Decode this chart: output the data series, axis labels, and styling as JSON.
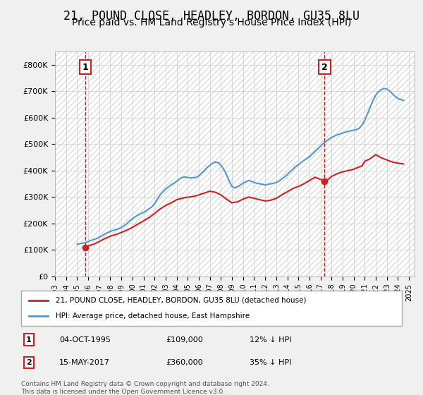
{
  "title": "21, POUND CLOSE, HEADLEY, BORDON, GU35 8LU",
  "subtitle": "Price paid vs. HM Land Registry's House Price Index (HPI)",
  "title_fontsize": 12,
  "subtitle_fontsize": 10,
  "ylabel_ticks": [
    "£0",
    "£100K",
    "£200K",
    "£300K",
    "£400K",
    "£500K",
    "£600K",
    "£700K",
    "£800K"
  ],
  "ytick_values": [
    0,
    100000,
    200000,
    300000,
    400000,
    500000,
    600000,
    700000,
    800000
  ],
  "ylim": [
    0,
    850000
  ],
  "xlim_start": 1993.0,
  "xlim_end": 2025.5,
  "background_color": "#f0f0f0",
  "plot_bg_color": "#ffffff",
  "grid_color": "#cccccc",
  "hpi_color": "#5599cc",
  "price_color": "#cc2222",
  "marker1_x": 1995.75,
  "marker1_y": 109000,
  "marker2_x": 2017.37,
  "marker2_y": 360000,
  "vline_color": "#cc2222",
  "annotation1_label": "1",
  "annotation2_label": "2",
  "legend_label1": "21, POUND CLOSE, HEADLEY, BORDON, GU35 8LU (detached house)",
  "legend_label2": "HPI: Average price, detached house, East Hampshire",
  "table_row1": [
    "1",
    "04-OCT-1995",
    "£109,000",
    "12% ↓ HPI"
  ],
  "table_row2": [
    "2",
    "15-MAY-2017",
    "£360,000",
    "35% ↓ HPI"
  ],
  "footnote": "Contains HM Land Registry data © Crown copyright and database right 2024.\nThis data is licensed under the Open Government Licence v3.0.",
  "hpi_data_x": [
    1995,
    1995.25,
    1995.5,
    1995.75,
    1996,
    1996.25,
    1996.5,
    1996.75,
    1997,
    1997.25,
    1997.5,
    1997.75,
    1998,
    1998.25,
    1998.5,
    1998.75,
    1999,
    1999.25,
    1999.5,
    1999.75,
    2000,
    2000.25,
    2000.5,
    2000.75,
    2001,
    2001.25,
    2001.5,
    2001.75,
    2002,
    2002.25,
    2002.5,
    2002.75,
    2003,
    2003.25,
    2003.5,
    2003.75,
    2004,
    2004.25,
    2004.5,
    2004.75,
    2005,
    2005.25,
    2005.5,
    2005.75,
    2006,
    2006.25,
    2006.5,
    2006.75,
    2007,
    2007.25,
    2007.5,
    2007.75,
    2008,
    2008.25,
    2008.5,
    2008.75,
    2009,
    2009.25,
    2009.5,
    2009.75,
    2010,
    2010.25,
    2010.5,
    2010.75,
    2011,
    2011.25,
    2011.5,
    2011.75,
    2012,
    2012.25,
    2012.5,
    2012.75,
    2013,
    2013.25,
    2013.5,
    2013.75,
    2014,
    2014.25,
    2014.5,
    2014.75,
    2015,
    2015.25,
    2015.5,
    2015.75,
    2016,
    2016.25,
    2016.5,
    2016.75,
    2017,
    2017.25,
    2017.5,
    2017.75,
    2018,
    2018.25,
    2018.5,
    2018.75,
    2019,
    2019.25,
    2019.5,
    2019.75,
    2020,
    2020.25,
    2020.5,
    2020.75,
    2021,
    2021.25,
    2021.5,
    2021.75,
    2022,
    2022.25,
    2022.5,
    2022.75,
    2023,
    2023.25,
    2023.5,
    2023.75,
    2024,
    2024.25,
    2024.5
  ],
  "hpi_data_y": [
    122000,
    124000,
    126000,
    128000,
    132000,
    136000,
    140000,
    143000,
    148000,
    154000,
    160000,
    166000,
    170000,
    174000,
    177000,
    180000,
    185000,
    192000,
    200000,
    210000,
    218000,
    226000,
    232000,
    237000,
    242000,
    248000,
    256000,
    263000,
    275000,
    292000,
    308000,
    320000,
    330000,
    338000,
    346000,
    352000,
    360000,
    368000,
    374000,
    376000,
    374000,
    372000,
    373000,
    374000,
    380000,
    390000,
    400000,
    412000,
    420000,
    428000,
    432000,
    430000,
    420000,
    405000,
    385000,
    360000,
    340000,
    335000,
    338000,
    345000,
    352000,
    358000,
    362000,
    360000,
    355000,
    352000,
    350000,
    348000,
    346000,
    348000,
    350000,
    352000,
    355000,
    360000,
    368000,
    376000,
    385000,
    395000,
    405000,
    415000,
    422000,
    430000,
    438000,
    445000,
    452000,
    462000,
    472000,
    482000,
    492000,
    502000,
    510000,
    518000,
    525000,
    530000,
    535000,
    538000,
    542000,
    545000,
    548000,
    550000,
    552000,
    555000,
    560000,
    572000,
    590000,
    615000,
    640000,
    665000,
    685000,
    698000,
    705000,
    710000,
    708000,
    700000,
    690000,
    680000,
    672000,
    668000,
    665000
  ],
  "price_data_x": [
    1995.75,
    1996,
    1996.5,
    1997,
    1997.5,
    1998,
    1998.75,
    1999.5,
    2000,
    2000.5,
    2001,
    2001.5,
    2002,
    2002.5,
    2003,
    2003.5,
    2004,
    2004.75,
    2005.5,
    2006,
    2006.5,
    2007,
    2007.5,
    2008,
    2008.5,
    2009,
    2009.5,
    2010,
    2010.5,
    2011,
    2011.5,
    2012,
    2012.5,
    2013,
    2013.5,
    2014,
    2014.5,
    2015,
    2015.5,
    2016,
    2016.5,
    2017.37,
    2017.75,
    2018,
    2018.5,
    2019,
    2019.5,
    2020,
    2020.75,
    2021,
    2021.5,
    2022,
    2022.5,
    2023,
    2023.5,
    2024,
    2024.5
  ],
  "price_data_y": [
    109000,
    115000,
    122000,
    132000,
    143000,
    152000,
    162000,
    175000,
    185000,
    198000,
    210000,
    222000,
    238000,
    255000,
    268000,
    278000,
    290000,
    298000,
    302000,
    308000,
    315000,
    322000,
    318000,
    308000,
    292000,
    278000,
    282000,
    292000,
    300000,
    295000,
    290000,
    285000,
    288000,
    295000,
    308000,
    320000,
    332000,
    340000,
    350000,
    362000,
    375000,
    360000,
    368000,
    378000,
    388000,
    395000,
    400000,
    405000,
    418000,
    435000,
    445000,
    460000,
    448000,
    440000,
    432000,
    428000,
    425000
  ]
}
